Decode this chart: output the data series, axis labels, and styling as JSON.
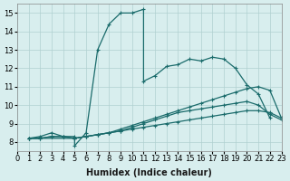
{
  "xlabel": "Humidex (Indice chaleur)",
  "ylabel": "",
  "bg_color": "#d8eeee",
  "line_color": "#1a6b6b",
  "grid_color": "#b0d0d0",
  "xlim": [
    0,
    23
  ],
  "ylim": [
    7.5,
    15.5
  ],
  "xticks": [
    0,
    1,
    2,
    3,
    4,
    5,
    6,
    7,
    8,
    9,
    10,
    11,
    12,
    13,
    14,
    15,
    16,
    17,
    18,
    19,
    20,
    21,
    22,
    23
  ],
  "yticks": [
    8,
    9,
    10,
    11,
    12,
    13,
    14,
    15
  ],
  "lines": [
    {
      "x": [
        1,
        2,
        3,
        4,
        5,
        5,
        6,
        7,
        8,
        9,
        10,
        11,
        11,
        12,
        13,
        14,
        15,
        16,
        17,
        18,
        19,
        20,
        21,
        22
      ],
      "y": [
        8.2,
        8.3,
        8.5,
        8.3,
        8.3,
        7.8,
        8.5,
        13.0,
        14.4,
        15.0,
        15.0,
        15.2,
        11.3,
        11.6,
        12.1,
        12.2,
        12.5,
        12.4,
        12.6,
        12.5,
        12.0,
        11.1,
        10.6,
        9.3
      ]
    },
    {
      "x": [
        1,
        2,
        3,
        4,
        5,
        6,
        7,
        8,
        9,
        10,
        11,
        12,
        13,
        14,
        15,
        16,
        17,
        18,
        19,
        20,
        21,
        22,
        23
      ],
      "y": [
        8.2,
        8.2,
        8.3,
        8.3,
        8.2,
        8.3,
        8.4,
        8.5,
        8.7,
        8.9,
        9.1,
        9.3,
        9.5,
        9.7,
        9.9,
        10.1,
        10.3,
        10.5,
        10.7,
        10.9,
        11.0,
        10.8,
        9.3
      ]
    },
    {
      "x": [
        1,
        5,
        6,
        7,
        8,
        9,
        10,
        11,
        12,
        13,
        14,
        15,
        16,
        17,
        18,
        19,
        20,
        21,
        22,
        23
      ],
      "y": [
        8.2,
        8.2,
        8.3,
        8.4,
        8.5,
        8.6,
        8.8,
        9.0,
        9.2,
        9.4,
        9.6,
        9.7,
        9.8,
        9.9,
        10.0,
        10.1,
        10.2,
        10.0,
        9.5,
        9.2
      ]
    },
    {
      "x": [
        1,
        2,
        3,
        4,
        5,
        6,
        7,
        8,
        9,
        10,
        11,
        12,
        13,
        14,
        15,
        16,
        17,
        18,
        19,
        20,
        21,
        22,
        23
      ],
      "y": [
        8.2,
        8.2,
        8.3,
        8.3,
        8.2,
        8.3,
        8.4,
        8.5,
        8.6,
        8.7,
        8.8,
        8.9,
        9.0,
        9.1,
        9.2,
        9.3,
        9.4,
        9.5,
        9.6,
        9.7,
        9.7,
        9.6,
        9.3
      ]
    }
  ]
}
